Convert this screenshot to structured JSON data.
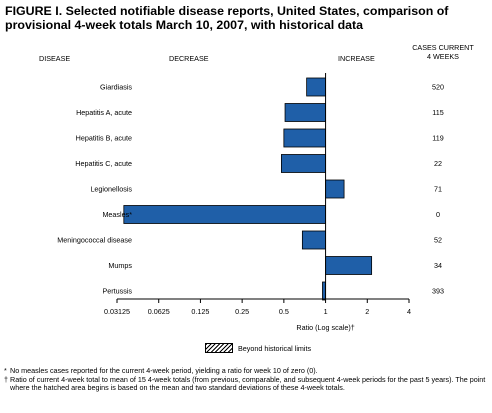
{
  "figure_title": "FIGURE I. Selected notifiable disease reports, United States, comparison of provisional 4-week totals March 10, 2007, with historical data",
  "headers": {
    "disease": "DISEASE",
    "decrease": "DECREASE",
    "increase": "INCREASE",
    "cases_current_line1": "CASES CURRENT",
    "cases_current_line2": "4 WEEKS"
  },
  "legend": {
    "label": "Beyond historical limits"
  },
  "footnotes": {
    "f1_mark": "*",
    "f1_text": "No measles cases reported for the current 4-week period, yielding a ratio for week 10 of zero (0).",
    "f2_mark": "†",
    "f2_text": "Ratio of current 4-week total to mean of 15 4-week totals (from previous, comparable, and subsequent 4-week periods for the past 5 years). The point where the hatched area begins is based on the mean and two standard deviations of these 4-week totals."
  },
  "colors": {
    "bar_fill": "#1f5fa8",
    "bar_stroke": "#000000"
  },
  "chart_data": {
    "type": "bar",
    "orientation": "horizontal",
    "xscale": "log2",
    "xlabel": "Ratio (Log scale)†",
    "xlim": [
      0.03125,
      4
    ],
    "ticks": [
      "0.03125",
      "0.0625",
      "0.125",
      "0.25",
      "0.5",
      "1",
      "2",
      "4"
    ],
    "tick_values": [
      0.03125,
      0.0625,
      0.125,
      0.25,
      0.5,
      1,
      2,
      4
    ],
    "baseline": 1,
    "grid": false,
    "categories": [
      "Giardiasis",
      "Hepatitis A, acute",
      "Hepatitis B, acute",
      "Hepatitis C, acute",
      "Legionellosis",
      "Measles*",
      "Meningococcal disease",
      "Mumps",
      "Pertussis"
    ],
    "values": [
      0.73,
      0.51,
      0.5,
      0.48,
      1.36,
      0.035,
      0.68,
      2.15,
      0.95
    ],
    "cases_current_4_weeks": [
      "520",
      "115",
      "119",
      "22",
      "71",
      "0",
      "52",
      "34",
      "393"
    ]
  }
}
